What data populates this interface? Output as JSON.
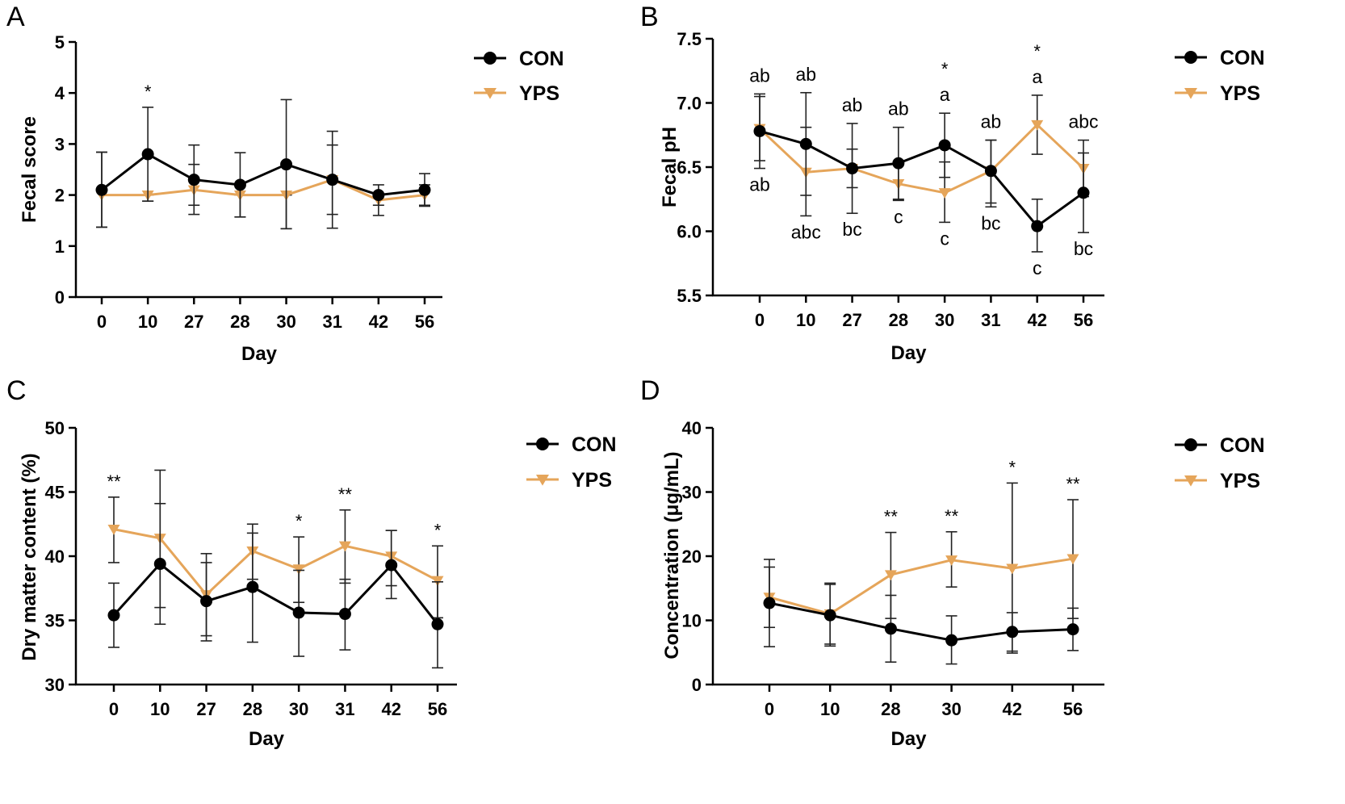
{
  "colors": {
    "con": "#000000",
    "yps": "#E5A55A"
  },
  "chart_data": [
    {
      "panel": "A",
      "type": "line",
      "xlabel": "Day",
      "ylabel": "Fecal score",
      "categories": [
        "0",
        "10",
        "27",
        "28",
        "30",
        "31",
        "42",
        "56"
      ],
      "ylim": [
        0,
        5
      ],
      "yticks": [
        "0",
        "1",
        "2",
        "3",
        "4",
        "5"
      ],
      "legend": [
        "CON",
        "YPS"
      ],
      "series": [
        {
          "name": "CON",
          "values": [
            2.1,
            2.8,
            2.3,
            2.2,
            2.6,
            2.3,
            2.0,
            2.1
          ],
          "err_upper": [
            2.84,
            3.72,
            2.98,
            2.83,
            3.87,
            3.25,
            2.2,
            2.42
          ],
          "err_lower": [
            1.37,
            1.88,
            1.62,
            1.57,
            1.34,
            1.35,
            1.8,
            1.78
          ]
        },
        {
          "name": "YPS",
          "values": [
            2.0,
            2.0,
            2.1,
            2.0,
            2.0,
            2.3,
            1.9,
            2.0
          ],
          "err_upper": [
            2.84,
            2.0,
            2.6,
            2.0,
            2.0,
            2.98,
            2.0,
            2.2
          ],
          "err_lower": [
            1.37,
            1.88,
            1.8,
            1.57,
            1.34,
            1.62,
            1.6,
            1.8
          ]
        }
      ],
      "significance": [
        "",
        "*",
        "",
        "",
        "",
        "",
        "",
        ""
      ]
    },
    {
      "panel": "B",
      "type": "line",
      "xlabel": "Day",
      "ylabel": "Fecal pH",
      "categories": [
        "0",
        "10",
        "27",
        "28",
        "30",
        "31",
        "42",
        "56"
      ],
      "ylim": [
        5.5,
        7.5
      ],
      "yticks": [
        "5.5",
        "6.0",
        "6.5",
        "7.0",
        "7.5"
      ],
      "legend": [
        "CON",
        "YPS"
      ],
      "series": [
        {
          "name": "CON",
          "values": [
            6.78,
            6.68,
            6.49,
            6.53,
            6.67,
            6.47,
            6.04,
            6.3
          ],
          "err_upper": [
            7.05,
            7.08,
            6.84,
            6.81,
            6.92,
            6.71,
            6.25,
            6.71
          ],
          "err_lower": [
            6.55,
            6.28,
            6.14,
            6.24,
            6.42,
            6.22,
            5.84,
            5.99
          ]
        },
        {
          "name": "YPS",
          "values": [
            6.8,
            6.46,
            6.49,
            6.37,
            6.3,
            6.47,
            6.83,
            6.49
          ],
          "err_upper": [
            7.07,
            6.81,
            6.64,
            6.52,
            6.54,
            6.71,
            7.06,
            6.61
          ],
          "err_lower": [
            6.49,
            6.12,
            6.34,
            6.25,
            6.07,
            6.19,
            6.6,
            6.27
          ]
        }
      ],
      "significance": [
        "",
        "",
        "",
        "",
        "*",
        "",
        "*",
        ""
      ],
      "letters_top": [
        "ab",
        "ab",
        "ab",
        "ab",
        "a",
        "ab",
        "a",
        "abc"
      ],
      "letters_bottom": [
        "ab",
        "abc",
        "bc",
        "c",
        "c",
        "bc",
        "c",
        "bc"
      ]
    },
    {
      "panel": "C",
      "type": "line",
      "xlabel": "Day",
      "ylabel": "Dry matter content (%)",
      "categories": [
        "0",
        "10",
        "27",
        "28",
        "30",
        "31",
        "42",
        "56"
      ],
      "ylim": [
        30,
        50
      ],
      "yticks": [
        "30",
        "35",
        "40",
        "45",
        "50"
      ],
      "legend": [
        "CON",
        "YPS"
      ],
      "series": [
        {
          "name": "CON",
          "values": [
            35.4,
            39.4,
            36.5,
            37.6,
            35.6,
            35.5,
            39.3,
            34.7
          ],
          "err_upper": [
            37.9,
            44.1,
            39.5,
            41.8,
            38.9,
            38.2,
            42.0,
            38.0
          ],
          "err_lower": [
            32.9,
            34.7,
            33.4,
            33.3,
            32.2,
            32.7,
            36.7,
            31.3
          ]
        },
        {
          "name": "YPS",
          "values": [
            42.1,
            41.4,
            37.0,
            40.4,
            39.0,
            40.8,
            40.0,
            38.1
          ],
          "err_upper": [
            44.6,
            46.7,
            40.2,
            42.5,
            41.5,
            43.6,
            42.0,
            40.8
          ],
          "err_lower": [
            39.5,
            36.0,
            33.8,
            38.2,
            36.4,
            37.9,
            37.7,
            35.2
          ]
        }
      ],
      "significance": [
        "**",
        "",
        "",
        "",
        "*",
        "**",
        "",
        "*"
      ]
    },
    {
      "panel": "D",
      "type": "line",
      "xlabel": "Day",
      "ylabel": "Concentration (μg/mL)",
      "categories": [
        "0",
        "10",
        "28",
        "30",
        "42",
        "56"
      ],
      "ylim": [
        0,
        40
      ],
      "yticks": [
        "0",
        "10",
        "20",
        "30",
        "40"
      ],
      "legend": [
        "CON",
        "YPS"
      ],
      "series": [
        {
          "name": "CON",
          "values": [
            12.7,
            10.8,
            8.7,
            6.9,
            8.2,
            8.6
          ],
          "err_upper": [
            19.5,
            15.6,
            13.9,
            10.7,
            11.2,
            11.9
          ],
          "err_lower": [
            5.9,
            6.0,
            3.5,
            3.2,
            5.2,
            5.3
          ]
        },
        {
          "name": "YPS",
          "values": [
            13.6,
            11.0,
            17.1,
            19.4,
            18.1,
            19.6
          ],
          "err_upper": [
            18.3,
            15.8,
            23.7,
            23.8,
            31.4,
            28.8
          ],
          "err_lower": [
            8.9,
            6.3,
            10.3,
            15.2,
            4.9,
            10.3
          ]
        }
      ],
      "significance": [
        "",
        "",
        "**",
        "**",
        "*",
        "**"
      ]
    }
  ]
}
